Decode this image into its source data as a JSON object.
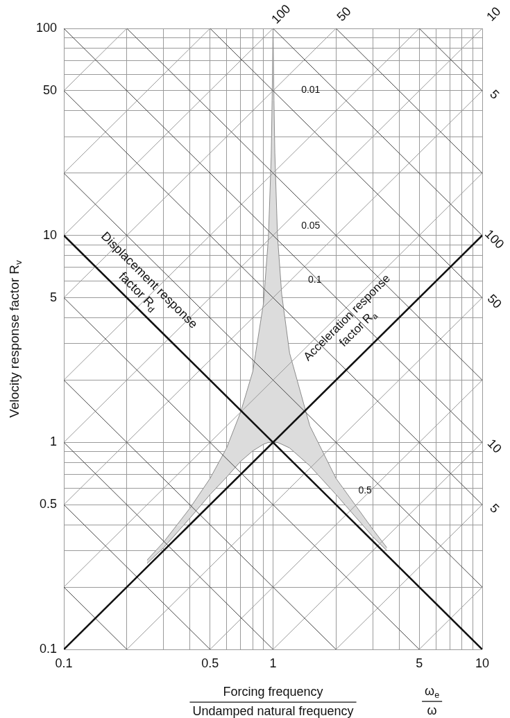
{
  "chart_data": {
    "type": "line",
    "log": "xy",
    "grid": true,
    "legend": false,
    "xlabel": "Forcing frequency\nUndamped natural frequency",
    "ylabel": "Velocity response factor R$_{v}$",
    "xlim": [
      0.1,
      10
    ],
    "ylim": [
      0.1,
      100
    ],
    "xticks": [
      0.1,
      {
        "value": 0.2,
        "label": null
      },
      {
        "value": 0.3,
        "label": null
      },
      {
        "value": 0.4,
        "label": null
      },
      0.5,
      {
        "value": 0.6,
        "label": null
      },
      {
        "value": 0.7,
        "label": null
      },
      {
        "value": 0.8,
        "label": null
      },
      {
        "value": 0.9,
        "label": null
      },
      1,
      {
        "value": 2,
        "label": null
      },
      {
        "value": 3,
        "label": null
      },
      {
        "value": 4,
        "label": null
      },
      5,
      {
        "value": 6,
        "label": null
      },
      {
        "value": 7,
        "label": null
      },
      {
        "value": 8,
        "label": null
      },
      {
        "value": 9,
        "label": null
      },
      10
    ],
    "yticks": [
      0.1,
      {
        "value": 0.2,
        "label": null
      },
      {
        "value": 0.3,
        "label": null
      },
      {
        "value": 0.4,
        "label": null
      },
      0.5,
      {
        "value": 0.6,
        "label": null
      },
      {
        "value": 0.7,
        "label": null
      },
      {
        "value": 0.8,
        "label": null
      },
      {
        "value": 0.9,
        "label": null
      },
      1,
      {
        "value": 2,
        "label": null
      },
      {
        "value": 3,
        "label": null
      },
      {
        "value": 4,
        "label": null
      },
      5,
      {
        "value": 6,
        "label": null
      },
      {
        "value": 7,
        "label": null
      },
      {
        "value": 8,
        "label": null
      },
      {
        "value": 9,
        "label": null
      },
      10,
      {
        "value": 20,
        "label": null
      },
      {
        "value": 30,
        "label": null
      },
      {
        "value": 40,
        "label": null
      },
      50,
      {
        "value": 60,
        "label": null
      },
      {
        "value": 70,
        "label": null
      },
      {
        "value": 80,
        "label": null
      },
      {
        "value": 90,
        "label": null
      },
      100
    ],
    "annotations": [
      "0.01",
      "0.05",
      "0.1",
      "0.5",
      "Displacement response\nfactor R$_{d}$",
      "Acceleration response\nfactor R$_{a}$",
      {
        "text": "100",
        "x": 1,
        "y": 100
      },
      {
        "text": "50",
        "x": 2,
        "y": 100
      },
      {
        "text": "10",
        "x": 10,
        "y": 100
      },
      {
        "text": "5",
        "x": 10,
        "y": 50
      },
      {
        "text": "100",
        "x": 10,
        "y": 10
      },
      {
        "text": "50",
        "x": 10,
        "y": 5
      },
      {
        "text": "10",
        "x": 10,
        "y": 1
      },
      {
        "text": "5",
        "x": 10,
        "y": 0.5
      },
      "ω$_{e}$\nω"
    ],
    "series": [
      {
        "type": "line",
        "color": "#888888",
        "x": [
          0.25,
          0.3,
          0.4,
          0.5,
          0.6,
          0.7,
          0.8,
          0.9,
          0.95,
          0.98,
          0.99,
          1,
          1.01,
          1.02,
          1.05,
          1.1,
          1.2,
          1.5,
          2,
          3,
          3.5
        ],
        "values": [
          0.26,
          0.31,
          0.43,
          0.56,
          0.68,
          0.81,
          0.91,
          0.98,
          1,
          1,
          1,
          1,
          1,
          1,
          1,
          0.98,
          0.94,
          0.77,
          0.56,
          0.35,
          0.3
        ]
      },
      {
        "type": "area",
        "color": "#dcdcdc",
        "x": [
          0.25,
          0.3,
          0.4,
          0.5,
          0.6,
          0.7,
          0.8,
          0.9,
          0.95,
          0.98,
          0.99,
          1,
          1.01,
          1.02,
          1.05,
          1.1,
          1.2,
          1.5,
          2,
          3,
          3.5
        ],
        "values": [
          0.27,
          0.33,
          0.48,
          0.67,
          0.94,
          1.4,
          2.2,
          4.7,
          9.7,
          24,
          45,
          100,
          45,
          25,
          10,
          5.2,
          2.7,
          1.2,
          0.67,
          0.38,
          0.31
        ]
      },
      {
        "type": "line",
        "color": "#999999",
        "x": [
          5,
          10
        ],
        "values": [
          0.1,
          0.2
        ]
      },
      {
        "type": "line",
        "color": "#999999",
        "x": [
          2,
          10
        ],
        "values": [
          0.1,
          0.5
        ]
      },
      {
        "type": "line",
        "color": "#999999",
        "x": [
          1,
          10
        ],
        "values": [
          0.1,
          1
        ]
      },
      {
        "type": "line",
        "color": "#999999",
        "x": [
          0.5,
          10
        ],
        "values": [
          0.1,
          2
        ]
      },
      {
        "type": "line",
        "color": "#999999",
        "x": [
          0.2,
          10
        ],
        "values": [
          0.1,
          5
        ]
      },
      {
        "type": "line",
        "color": "#999999",
        "x": [
          0.1,
          10
        ],
        "values": [
          0.2,
          20
        ]
      },
      {
        "type": "line",
        "color": "#999999",
        "x": [
          0.1,
          10
        ],
        "values": [
          0.5,
          50
        ]
      },
      {
        "type": "line",
        "color": "#999999",
        "x": [
          0.1,
          10
        ],
        "values": [
          1,
          100
        ]
      },
      {
        "type": "line",
        "color": "#999999",
        "x": [
          0.1,
          5
        ],
        "values": [
          2,
          100
        ]
      },
      {
        "type": "line",
        "color": "#999999",
        "x": [
          0.1,
          2
        ],
        "values": [
          5,
          100
        ]
      },
      {
        "type": "line",
        "color": "#999999",
        "x": [
          0.1,
          1
        ],
        "values": [
          10,
          100
        ]
      },
      {
        "type": "line",
        "color": "#999999",
        "x": [
          0.1,
          0.5
        ],
        "values": [
          20,
          100
        ]
      },
      {
        "type": "line",
        "color": "#999999",
        "x": [
          0.1,
          0.2
        ],
        "values": [
          50,
          100
        ]
      },
      {
        "type": "line",
        "color": "#444444",
        "x": [
          0.1,
          0.2
        ],
        "values": [
          0.2,
          0.1
        ]
      },
      {
        "type": "line",
        "color": "#444444",
        "x": [
          0.1,
          0.5
        ],
        "values": [
          0.5,
          0.1
        ]
      },
      {
        "type": "line",
        "color": "#444444",
        "x": [
          0.1,
          1
        ],
        "values": [
          1,
          0.1
        ]
      },
      {
        "type": "line",
        "color": "#444444",
        "x": [
          0.1,
          2
        ],
        "values": [
          2,
          0.1
        ]
      },
      {
        "type": "line",
        "color": "#444444",
        "x": [
          0.1,
          5
        ],
        "values": [
          5,
          0.1
        ]
      },
      {
        "type": "line",
        "color": "#444444",
        "x": [
          0.1,
          10
        ],
        "values": [
          20,
          0.2
        ]
      },
      {
        "type": "line",
        "color": "#444444",
        "x": [
          0.1,
          10
        ],
        "values": [
          50,
          0.5
        ]
      },
      {
        "type": "line",
        "color": "#444444",
        "x": [
          0.1,
          10
        ],
        "values": [
          100,
          1
        ]
      },
      {
        "type": "line",
        "color": "#444444",
        "x": [
          0.2,
          10
        ],
        "values": [
          100,
          2
        ]
      },
      {
        "type": "line",
        "color": "#444444",
        "x": [
          0.5,
          10
        ],
        "values": [
          100,
          5
        ]
      },
      {
        "type": "line",
        "color": "#444444",
        "x": [
          1,
          10
        ],
        "values": [
          100,
          10
        ]
      },
      {
        "type": "line",
        "color": "#444444",
        "x": [
          2,
          10
        ],
        "values": [
          100,
          20
        ]
      },
      {
        "type": "line",
        "color": "#444444",
        "x": [
          5,
          10
        ],
        "values": [
          100,
          50
        ]
      },
      {
        "type": "line",
        "color": "#111111",
        "x": [
          0.1,
          10
        ],
        "values": [
          0.1,
          10
        ]
      },
      {
        "type": "line",
        "color": "#111111",
        "x": [
          0.1,
          10
        ],
        "values": [
          10,
          0.1
        ]
      }
    ]
  }
}
